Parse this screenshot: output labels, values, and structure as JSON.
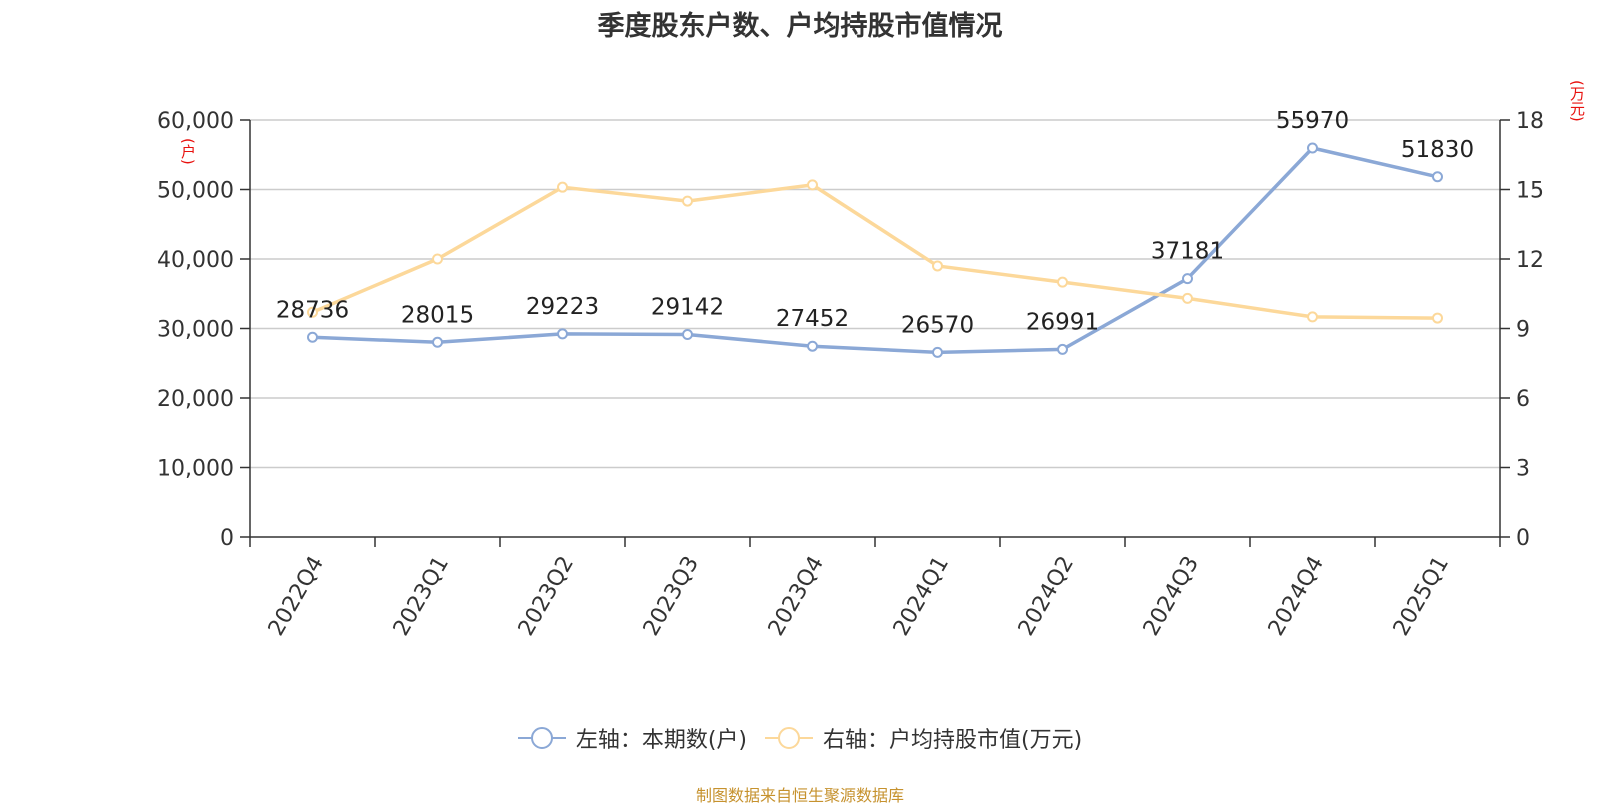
{
  "source_note": "制图数据来自恒生聚源数据库",
  "chart_data": {
    "type": "line",
    "title": "季度股东户数、户均持股市值情况",
    "categories": [
      "2022Q4",
      "2023Q1",
      "2023Q2",
      "2023Q3",
      "2023Q4",
      "2024Q1",
      "2024Q2",
      "2024Q3",
      "2024Q4",
      "2025Q1"
    ],
    "y_left": {
      "unit": "(户)",
      "range": [
        0,
        60000
      ],
      "ticks": [
        "0",
        "10,000",
        "20,000",
        "30,000",
        "40,000",
        "50,000",
        "60,000"
      ]
    },
    "y_right": {
      "unit": "(万元)",
      "range": [
        0,
        18
      ],
      "ticks": [
        "0",
        "3",
        "6",
        "9",
        "12",
        "15",
        "18"
      ]
    },
    "grid": true,
    "legend_position": "bottom",
    "series": [
      {
        "name": "左轴：本期数(户)",
        "axis": "left",
        "color": "#8ba8d6",
        "values": [
          28736,
          28015,
          29223,
          29142,
          27452,
          26570,
          26991,
          37181,
          55970,
          51830
        ],
        "labels": [
          "28736",
          "28015",
          "29223",
          "29142",
          "27452",
          "26570",
          "26991",
          "37181",
          "55970",
          "51830"
        ]
      },
      {
        "name": "右轴：户均持股市值(万元)",
        "axis": "right",
        "color": "#fcd89a",
        "values": [
          9.7,
          12.0,
          15.1,
          14.5,
          15.2,
          11.7,
          11.0,
          10.3,
          9.5,
          9.45
        ]
      }
    ]
  }
}
